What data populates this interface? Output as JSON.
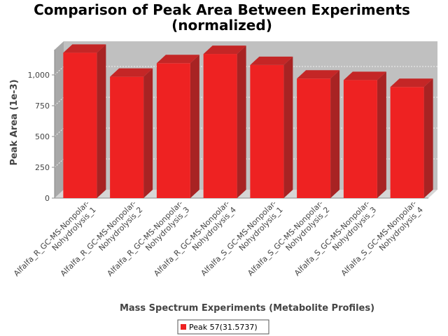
{
  "chart_data": {
    "type": "bar",
    "title": "Comparison of Peak Area Between Experiments",
    "subtitle": "(normalized)",
    "xlabel": "Mass Spectrum Experiments (Metabolite Profiles)",
    "ylabel": "Peak Area (1e-3)",
    "ylim": [
      0,
      1250
    ],
    "yticks": [
      0,
      250,
      500,
      750,
      1000
    ],
    "ytick_labels": [
      "0",
      "250",
      "500",
      "750",
      "1,000"
    ],
    "categories": [
      [
        "Alfalfa_R_GC-MS-Nonpolar-",
        "Nohydrolysis_1"
      ],
      [
        "Alfalfa_R_GC-MS-Nonpolar-",
        "Nohydrolysis_2"
      ],
      [
        "Alfalfa_R_GC-MS-Nonpolar-",
        "Nohydrolysis_3"
      ],
      [
        "Alfalfa_R_GC-MS-Nonpolar-",
        "Nohydrolysis_4"
      ],
      [
        "Alfalfa_S_GC-MS-Nonpolar-",
        "Nohydrolysis_1"
      ],
      [
        "Alfalfa_S_GC-MS-Nonpolar-",
        "Nohydrolysis_2"
      ],
      [
        "Alfalfa_S_GC-MS-Nonpolar-",
        "Nohydrolysis_3"
      ],
      [
        "Alfalfa_S_GC-MS-Nonpolar-",
        "Nohydrolysis_4"
      ]
    ],
    "series": [
      {
        "name": "Peak 57(31.5737)",
        "color": "#ee2222",
        "values": [
          1180,
          985,
          1095,
          1170,
          1080,
          970,
          958,
          902
        ]
      }
    ],
    "grid": true,
    "legend_position": "bottom-center",
    "style": "3d",
    "colors": {
      "plot_background": "#c0c0c0",
      "gridline": "#ffffff",
      "bar_front": "#ee2222",
      "bar_side": "#a82323",
      "bar_top": "#c42626"
    }
  }
}
